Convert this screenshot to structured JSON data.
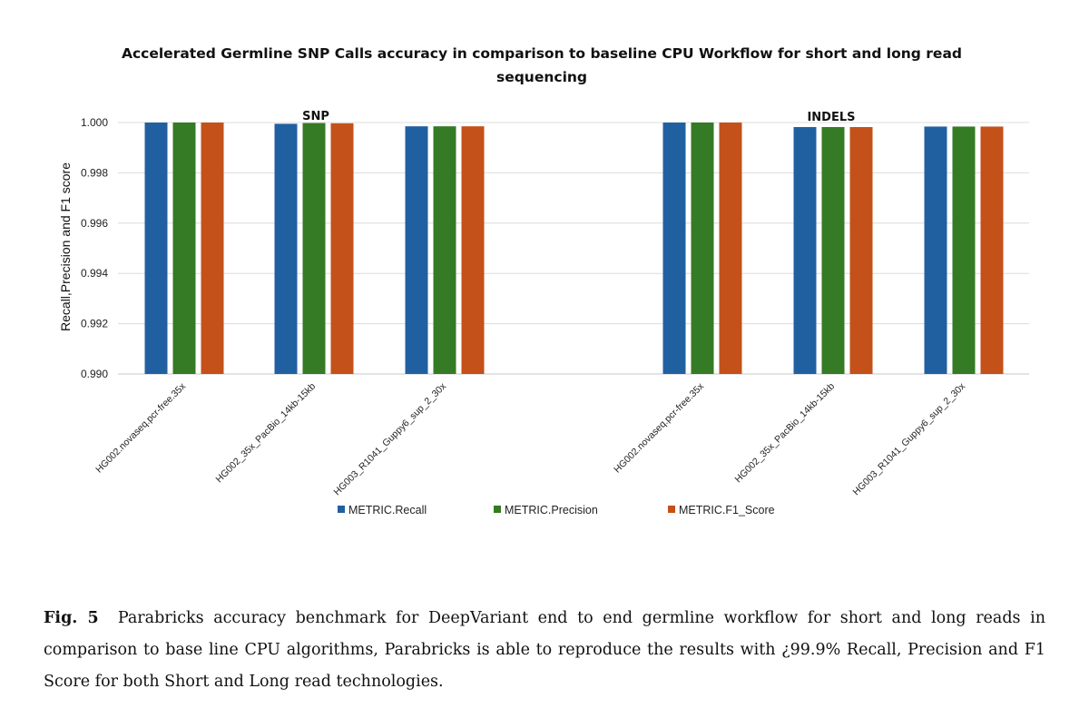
{
  "chart_data": {
    "type": "bar",
    "title_lines": [
      "Accelerated Germline SNP Calls accuracy in comparison to baseline CPU Workflow for short and long read",
      "sequencing"
    ],
    "xlabel": "",
    "ylabel": "Recall,Precision and  F1 score",
    "ylim": [
      0.99,
      1.0
    ],
    "yticks": [
      0.99,
      0.992,
      0.994,
      0.996,
      0.998,
      1.0
    ],
    "ytick_labels": [
      "0.990",
      "0.992",
      "0.994",
      "0.996",
      "0.998",
      "1.000"
    ],
    "grid": true,
    "group_labels": [
      "SNP",
      "INDELS"
    ],
    "categories": [
      "HG002.novaseq.pcr-free.35x",
      "HG002_35x_PacBio_14kb-15kb",
      "HG003_R1041_Guppy6_sup_2_30x",
      "HG002.novaseq.pcr-free.35x",
      "HG002_35x_PacBio_14kb-15kb",
      "HG003_R1041_Guppy6_sup_2_30x"
    ],
    "series": [
      {
        "name": "METRIC.Recall",
        "color": "#2160a0",
        "values": [
          1.0,
          0.99995,
          0.99985,
          1.0,
          0.99982,
          0.99984
        ]
      },
      {
        "name": "METRIC.Precision",
        "color": "#357a24",
        "values": [
          1.0,
          0.99998,
          0.99985,
          1.0,
          0.99982,
          0.99984
        ]
      },
      {
        "name": "METRIC.F1_Score",
        "color": "#c45119",
        "values": [
          1.0,
          0.99997,
          0.99985,
          1.0,
          0.99982,
          0.99984
        ]
      }
    ],
    "legend_position": "bottom"
  },
  "caption": {
    "label": "Fig. 5",
    "text": "Parabricks accuracy benchmark for DeepVariant end to end germline workflow for short and long reads in comparison to base line CPU algorithms, Parabricks is able to reproduce the results with ¿99.9% Recall, Precision and F1 Score for both Short and Long read technologies."
  }
}
